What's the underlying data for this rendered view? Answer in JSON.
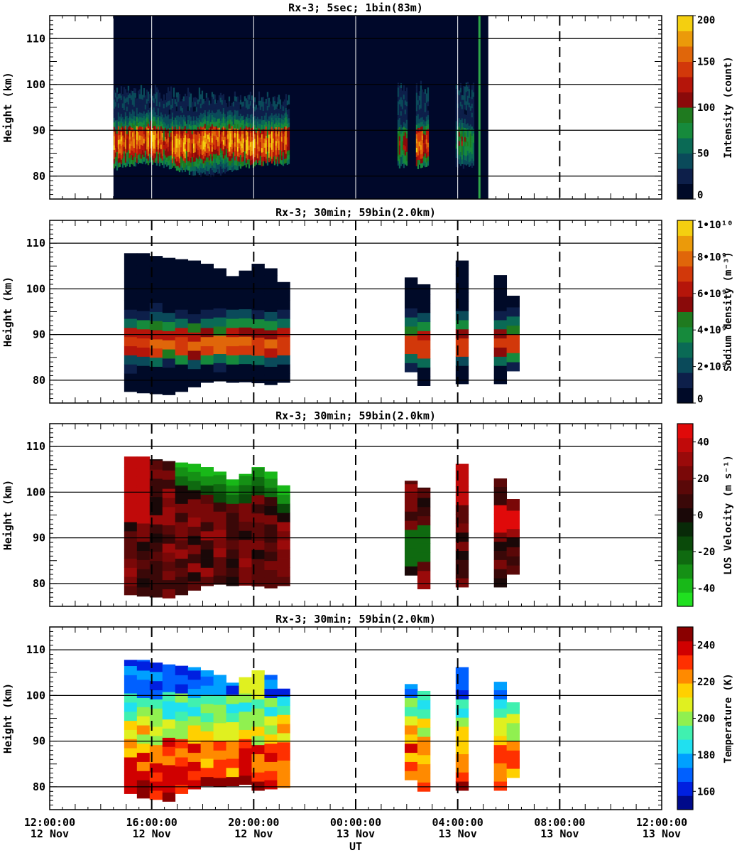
{
  "chart_data": [
    {
      "type": "heatmap",
      "title": "Rx-3;  5sec; 1bin(83m)",
      "ylabel": "Height (km)",
      "ylim": [
        75,
        115
      ],
      "yticks": [
        "80",
        "90",
        "100",
        "110"
      ],
      "colorbar": {
        "label": "Intensity (count)",
        "ticks": [
          "0",
          "50",
          "100",
          "150",
          "200"
        ],
        "range": [
          0,
          200
        ]
      },
      "time_range_hours": [
        12,
        36
      ],
      "data_coverage_hours": [
        [
          14.5,
          29.2
        ]
      ],
      "layer": {
        "bottom_km": 81,
        "top_km": 96,
        "peak_km": 87,
        "peak_count": 170
      }
    },
    {
      "type": "heatmap",
      "title": "Rx-3; 30min; 59bin(2.0km)",
      "ylabel": "Height (km)",
      "ylim": [
        75,
        115
      ],
      "yticks": [
        "80",
        "90",
        "100",
        "110"
      ],
      "colorbar": {
        "label": "Sodium density (m⁻³)",
        "ticks": [
          "0",
          "2•10⁹",
          "4•10⁹",
          "6•10⁹",
          "8•10⁹",
          "1•10¹⁰"
        ],
        "range": [
          0,
          10000000000.0
        ]
      },
      "profile_times_hours": [
        15.17,
        15.67,
        16.17,
        16.67,
        17.17,
        17.67,
        18.17,
        18.67,
        19.17,
        19.67,
        20.17,
        20.67,
        21.17,
        26.17,
        26.67,
        28.17,
        29.67,
        30.17
      ],
      "profile_bottom_km": [
        77.5,
        77.2,
        77.0,
        76.8,
        77.5,
        78.5,
        79.5,
        79.8,
        79.5,
        79.6,
        79.4,
        79.0,
        79.5,
        81.8,
        78.8,
        79.2,
        79.2,
        82.0
      ],
      "profile_top_km": [
        107.8,
        107.8,
        107.2,
        106.8,
        106.5,
        106.2,
        105.5,
        104.5,
        102.8,
        104.0,
        105.5,
        104.5,
        101.5,
        102.5,
        101.0,
        106.2,
        103.0,
        98.5
      ],
      "layer": {
        "peak_km": 87.5,
        "peak_density": 6500000000.0
      }
    },
    {
      "type": "heatmap",
      "title": "Rx-3; 30min; 59bin(2.0km)",
      "ylabel": "Height (km)",
      "ylim": [
        75,
        115
      ],
      "yticks": [
        "80",
        "90",
        "100",
        "110"
      ],
      "colorbar": {
        "label": "LOS Velocity (m s⁻¹)",
        "ticks": [
          "-40",
          "-20",
          "0",
          "20",
          "40"
        ],
        "range": [
          -50,
          50
        ]
      },
      "profile_times_hours": [
        15.17,
        15.67,
        16.17,
        16.67,
        17.17,
        17.67,
        18.17,
        18.67,
        19.17,
        19.67,
        20.17,
        20.67,
        21.17,
        26.17,
        26.67,
        28.17,
        29.67,
        30.17
      ],
      "profile_bottom_km": [
        77.5,
        77.2,
        77.0,
        76.8,
        77.5,
        78.5,
        79.5,
        79.8,
        79.5,
        79.6,
        79.4,
        79.0,
        79.5,
        81.8,
        78.8,
        79.2,
        79.2,
        82.0
      ],
      "profile_top_km": [
        107.8,
        107.8,
        107.2,
        106.8,
        106.5,
        106.2,
        105.5,
        104.5,
        102.8,
        104.0,
        105.5,
        104.5,
        101.5,
        102.5,
        101.0,
        106.2,
        103.0,
        98.5
      ]
    },
    {
      "type": "heatmap",
      "title": "Rx-3; 30min; 59bin(2.0km)",
      "ylabel": "Height (km)",
      "xlabel": "UT",
      "ylim": [
        75,
        115
      ],
      "yticks": [
        "80",
        "90",
        "100",
        "110"
      ],
      "xticks": [
        {
          "time": "12:00:00",
          "date": "12 Nov"
        },
        {
          "time": "16:00:00",
          "date": "12 Nov"
        },
        {
          "time": "20:00:00",
          "date": "12 Nov"
        },
        {
          "time": "00:00:00",
          "date": "13 Nov"
        },
        {
          "time": "04:00:00",
          "date": "13 Nov"
        },
        {
          "time": "08:00:00",
          "date": "13 Nov"
        },
        {
          "time": "12:00:00",
          "date": "13 Nov"
        }
      ],
      "colorbar": {
        "label": "Temperature (K)",
        "ticks": [
          "160",
          "180",
          "200",
          "220",
          "240"
        ],
        "range": [
          150,
          250
        ]
      },
      "profile_times_hours": [
        15.17,
        15.67,
        16.17,
        16.67,
        17.17,
        17.67,
        18.17,
        18.67,
        19.17,
        19.67,
        20.17,
        20.67,
        21.17,
        26.17,
        26.67,
        28.17,
        29.67,
        30.17
      ],
      "profile_bottom_km": [
        78.5,
        77.5,
        77.2,
        76.8,
        78.5,
        79.5,
        80.2,
        80.0,
        80.2,
        80.5,
        79.2,
        79.5,
        79.8,
        81.5,
        79.0,
        79.2,
        79.2,
        82.0
      ],
      "profile_top_km": [
        107.8,
        107.8,
        107.2,
        106.8,
        106.5,
        106.2,
        105.5,
        104.5,
        102.8,
        104.0,
        105.5,
        104.5,
        101.5,
        102.5,
        101.0,
        106.2,
        103.0,
        98.5
      ]
    }
  ]
}
